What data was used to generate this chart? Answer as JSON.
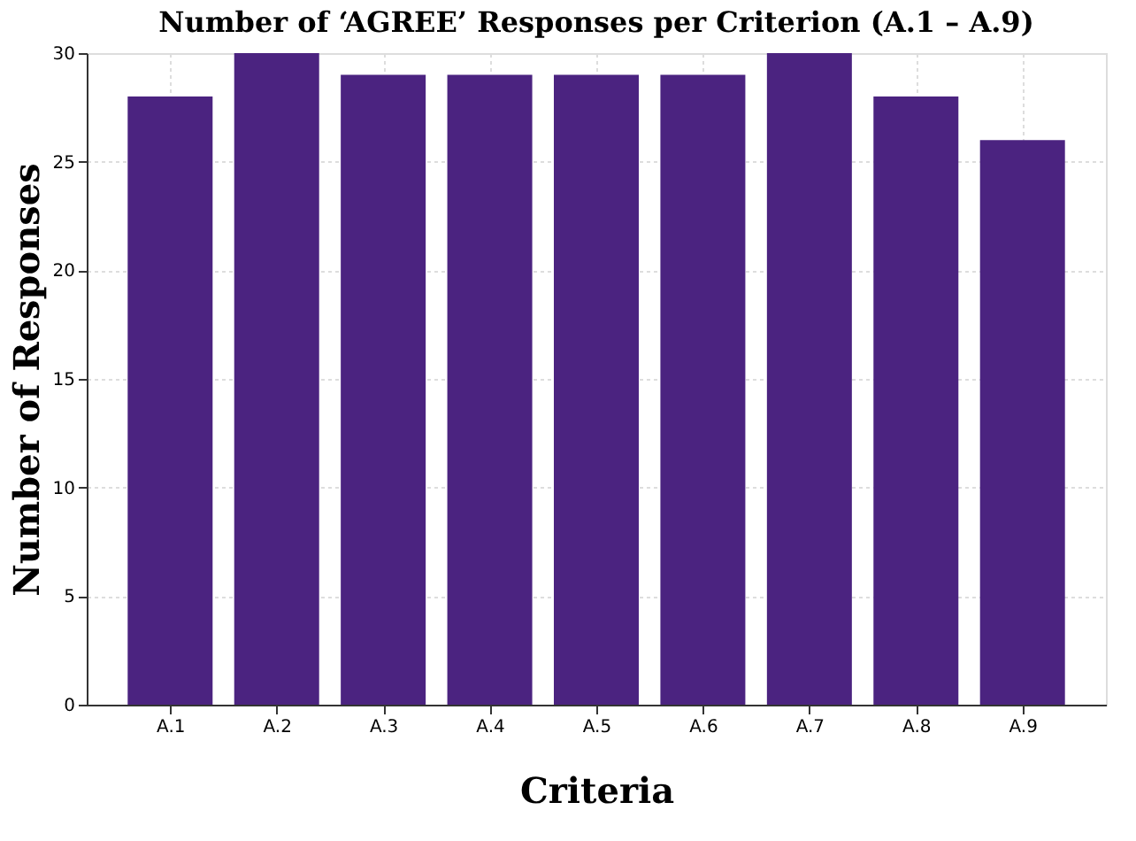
{
  "chart_data": {
    "type": "bar",
    "title": "Number of ‘AGREE’ Responses per Criterion (A.1 – A.9)",
    "xlabel": "Criteria",
    "ylabel": "Number of Responses",
    "categories": [
      "A.1",
      "A.2",
      "A.3",
      "A.4",
      "A.5",
      "A.6",
      "A.7",
      "A.8",
      "A.9"
    ],
    "values": [
      28,
      30,
      29,
      29,
      29,
      29,
      30,
      28,
      26
    ],
    "color": "#4b2380",
    "ylim": [
      0,
      30
    ],
    "yticks": [
      0,
      5,
      10,
      15,
      20,
      25,
      30
    ],
    "grid": true
  }
}
